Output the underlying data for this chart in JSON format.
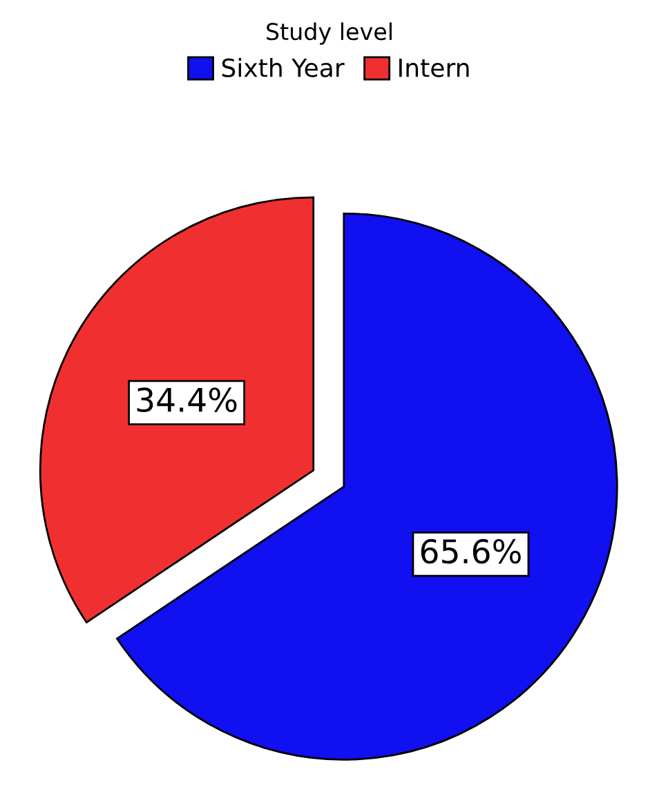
{
  "chart_data": {
    "type": "pie",
    "legend_title": "Study level",
    "legend": "top",
    "value_labels": [
      "65.6%",
      "34.4%"
    ],
    "categories": [
      "Sixth Year",
      "Intern"
    ],
    "values": [
      65.6,
      34.4
    ],
    "colors": [
      "#1010f0",
      "#f03030"
    ]
  }
}
